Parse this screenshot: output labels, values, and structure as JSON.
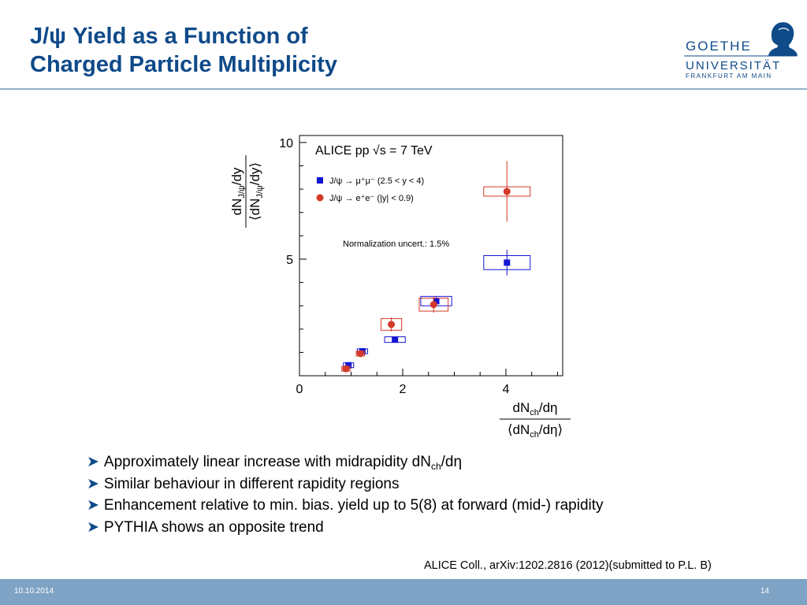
{
  "slide": {
    "title_line1": "J/ψ Yield as a Function of",
    "title_line2": "Charged Particle Multiplicity",
    "logo": {
      "line1": "GOETHE",
      "line2": "UNIVERSITÄT",
      "line3": "FRANKFURT AM MAIN"
    },
    "bullet_marker": "➤",
    "bullets": [
      {
        "pre": "Approximately linear increase with midrapidity dN",
        "sub": "ch",
        "post": "/dη"
      },
      {
        "pre": "Similar behaviour in different rapidity regions",
        "sub": "",
        "post": ""
      },
      {
        "pre": "Enhancement relative to min. bias. yield up to 5(8) at forward (mid-) rapidity",
        "sub": "",
        "post": ""
      },
      {
        "pre": "PYTHIA shows an opposite trend",
        "sub": "",
        "post": ""
      }
    ],
    "citation": "ALICE Coll., arXiv:1202.2816 (2012)(submitted to P.L. B)",
    "footer_date": "10.10.2014",
    "footer_page": "14"
  },
  "chart_data": {
    "type": "scatter",
    "title": "ALICE pp √s = 7 TeV",
    "annotation": "Normalization uncert.: 1.5%",
    "xlabel": "dNch/dη / ⟨dNch/dη⟩",
    "ylabel": "dNJ/ψ/dy / ⟨dNJ/ψ/dy⟩",
    "xlim": [
      0,
      5.1
    ],
    "ylim": [
      0,
      10.3
    ],
    "xticks": [
      0,
      2,
      4
    ],
    "yticks": [
      5,
      10
    ],
    "legend_position": "top-left",
    "colors": {
      "series1": "#1515d4",
      "series2": "#d43a2a"
    },
    "series": [
      {
        "name": "J/ψ → μ⁺μ⁻ (2.5 < y < 4)",
        "marker": "square",
        "color": "#1515d4",
        "points": [
          {
            "x": 0.95,
            "y": 0.45,
            "err": 0.05,
            "sys_dx": 0.1,
            "sys_dy": 0.06
          },
          {
            "x": 1.22,
            "y": 1.05,
            "err": 0.06,
            "sys_dx": 0.1,
            "sys_dy": 0.08
          },
          {
            "x": 1.85,
            "y": 1.55,
            "err": 0.1,
            "sys_dx": 0.2,
            "sys_dy": 0.12
          },
          {
            "x": 2.65,
            "y": 3.2,
            "err": 0.2,
            "sys_dx": 0.3,
            "sys_dy": 0.2
          },
          {
            "x": 4.02,
            "y": 4.85,
            "err": 0.55,
            "sys_dx": 0.45,
            "sys_dy": 0.3
          }
        ]
      },
      {
        "name": "J/ψ → e⁺e⁻ (|y| < 0.9)",
        "marker": "circle",
        "color": "#d43a2a",
        "points": [
          {
            "x": 0.9,
            "y": 0.3,
            "err": 0.06,
            "sys_dx": 0.08,
            "sys_dy": 0.05
          },
          {
            "x": 1.18,
            "y": 0.95,
            "err": 0.07,
            "sys_dx": 0.08,
            "sys_dy": 0.07
          },
          {
            "x": 1.78,
            "y": 2.2,
            "err": 0.3,
            "sys_dx": 0.2,
            "sys_dy": 0.25
          },
          {
            "x": 2.6,
            "y": 3.05,
            "err": 0.35,
            "sys_dx": 0.28,
            "sys_dy": 0.28
          },
          {
            "x": 4.02,
            "y": 7.9,
            "err": 1.3,
            "sys_dx": 0.45,
            "sys_dy": 0.2
          }
        ]
      }
    ]
  }
}
